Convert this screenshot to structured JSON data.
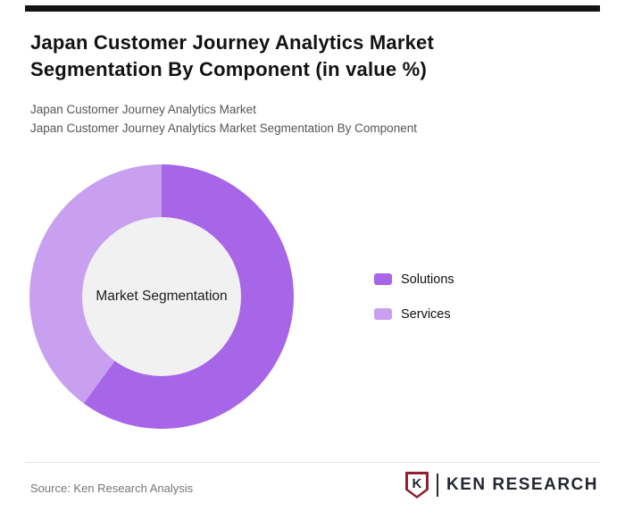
{
  "header": {
    "title_line1": "Japan Customer Journey Analytics Market",
    "title_line2": "Segmentation By Component (in value %)",
    "subtitle1": "Japan Customer Journey Analytics Market",
    "subtitle2": "Japan Customer Journey Analytics Market Segmentation By Component"
  },
  "chart_data": {
    "type": "pie",
    "donut": true,
    "title": "Japan Customer Journey Analytics Market Segmentation By Component (in value %)",
    "center_label": "Market Segmentation",
    "start_angle_deg": 0,
    "legend_position": "right",
    "series": [
      {
        "name": "Solutions",
        "value": 60,
        "color": "#a765e8"
      },
      {
        "name": "Services",
        "value": 40,
        "color": "#c9a0f0"
      }
    ],
    "hole_color": "#f1f1f1",
    "units": "value %"
  },
  "footer": {
    "source": "Source: Ken Research Analysis",
    "logo_letter": "K",
    "logo_text": "KEN RESEARCH"
  },
  "colors": {
    "topbar": "#141414",
    "solutions": "#a765e8",
    "services": "#c9a0f0",
    "logo_maroon": "#8e2130"
  }
}
